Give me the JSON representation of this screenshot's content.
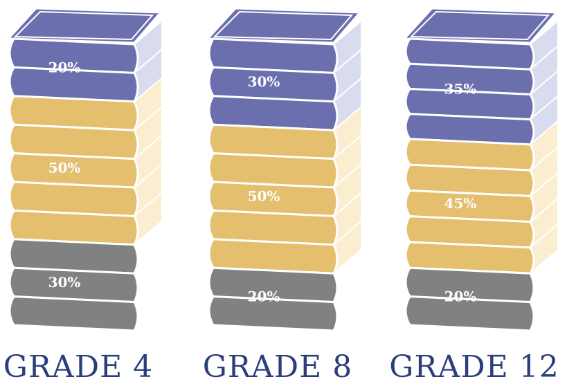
{
  "chart_data": {
    "type": "bar",
    "stacked": true,
    "categories": [
      "GRADE 4",
      "GRADE 8",
      "GRADE 12"
    ],
    "series": [
      {
        "values": [
          20,
          30,
          35
        ],
        "labels": [
          "20%",
          "30%",
          "35%"
        ]
      },
      {
        "values": [
          50,
          50,
          45
        ],
        "labels": [
          "50%",
          "50%",
          "45%"
        ]
      },
      {
        "values": [
          30,
          20,
          20
        ],
        "labels": [
          "30%",
          "20%",
          "20%"
        ]
      }
    ],
    "ylim": [
      0,
      100
    ],
    "grid": false,
    "legend": "none"
  },
  "colors": {
    "top_segment": "#6b6fae",
    "top_segment_pages": "#d9dcef",
    "middle_segment": "#e3bf6e",
    "middle_segment_pages": "#fbeed0",
    "bottom_segment": "#7f8183",
    "bottom_segment_pages": "#ffffff",
    "outline": "#ffffff",
    "grade_text": "#2b3e7b"
  }
}
